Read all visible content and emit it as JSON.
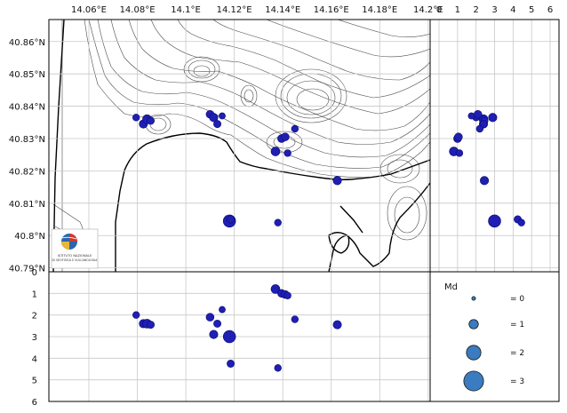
{
  "map": {
    "lon_ticks": [
      {
        "value": 14.06,
        "label": "14.06°E"
      },
      {
        "value": 14.08,
        "label": "14.08°E"
      },
      {
        "value": 14.1,
        "label": "14.1°E"
      },
      {
        "value": 14.12,
        "label": "14.12°E"
      },
      {
        "value": 14.14,
        "label": "14.14°E"
      },
      {
        "value": 14.16,
        "label": "14.16°E"
      },
      {
        "value": 14.18,
        "label": "14.18°E"
      },
      {
        "value": 14.2,
        "label": "14.2°E"
      }
    ],
    "lat_ticks": [
      {
        "value": 40.86,
        "label": "40.86°N"
      },
      {
        "value": 40.85,
        "label": "40.85°N"
      },
      {
        "value": 40.84,
        "label": "40.84°N"
      },
      {
        "value": 40.83,
        "label": "40.83°N"
      },
      {
        "value": 40.82,
        "label": "40.82°N"
      },
      {
        "value": 40.81,
        "label": "40.81°N"
      },
      {
        "value": 40.8,
        "label": "40.8°N"
      },
      {
        "value": 40.79,
        "label": "40.79°N"
      }
    ],
    "logo_text": [
      "ISTITUTO NAZIONALE",
      "DI GEOFISICA E VULCANOLOGIA"
    ],
    "colors": {
      "event_fill": "#1f1fb4",
      "event_edge": "#0a0a70",
      "legend_fill": "#3b7bbf",
      "legend_edge": "#1a1a1a",
      "sea": "#ffffff",
      "land_contour": "#4a4a4a"
    }
  },
  "depth_ticks_right": [
    "0",
    "1",
    "2",
    "3",
    "4",
    "5",
    "6"
  ],
  "depth_ticks_bottom": [
    "0",
    "1",
    "2",
    "3",
    "4",
    "5",
    "6"
  ],
  "legend": {
    "title": "Md",
    "entries": [
      {
        "label": "= 0",
        "md": 0
      },
      {
        "label": "= 1",
        "md": 1
      },
      {
        "label": "= 2",
        "md": 2
      },
      {
        "label": "= 3",
        "md": 3
      }
    ]
  },
  "events": [
    {
      "lon": 14.0795,
      "lat": 40.8365,
      "depth": 2.0,
      "md": 0.6
    },
    {
      "lon": 14.0825,
      "lat": 40.8345,
      "depth": 2.4,
      "md": 0.9
    },
    {
      "lon": 14.084,
      "lat": 40.836,
      "depth": 2.4,
      "md": 1.0
    },
    {
      "lon": 14.0855,
      "lat": 40.8355,
      "depth": 2.45,
      "md": 0.7
    },
    {
      "lon": 14.11,
      "lat": 40.8375,
      "depth": 2.1,
      "md": 0.8
    },
    {
      "lon": 14.1115,
      "lat": 40.8365,
      "depth": 2.9,
      "md": 0.9
    },
    {
      "lon": 14.113,
      "lat": 40.8345,
      "depth": 2.4,
      "md": 0.7
    },
    {
      "lon": 14.115,
      "lat": 40.837,
      "depth": 1.75,
      "md": 0.5
    },
    {
      "lon": 14.118,
      "lat": 40.8045,
      "depth": 3.0,
      "md": 1.7
    },
    {
      "lon": 14.1185,
      "lat": 40.805,
      "depth": 4.25,
      "md": 0.7
    },
    {
      "lon": 14.138,
      "lat": 40.804,
      "depth": 4.45,
      "md": 0.6
    },
    {
      "lon": 14.137,
      "lat": 40.826,
      "depth": 0.8,
      "md": 1.0
    },
    {
      "lon": 14.1395,
      "lat": 40.83,
      "depth": 1.0,
      "md": 0.8
    },
    {
      "lon": 14.141,
      "lat": 40.8305,
      "depth": 1.05,
      "md": 0.8
    },
    {
      "lon": 14.142,
      "lat": 40.8255,
      "depth": 1.1,
      "md": 0.6
    },
    {
      "lon": 14.145,
      "lat": 40.833,
      "depth": 2.2,
      "md": 0.6
    },
    {
      "lon": 14.1625,
      "lat": 40.817,
      "depth": 2.45,
      "md": 0.9
    }
  ]
}
